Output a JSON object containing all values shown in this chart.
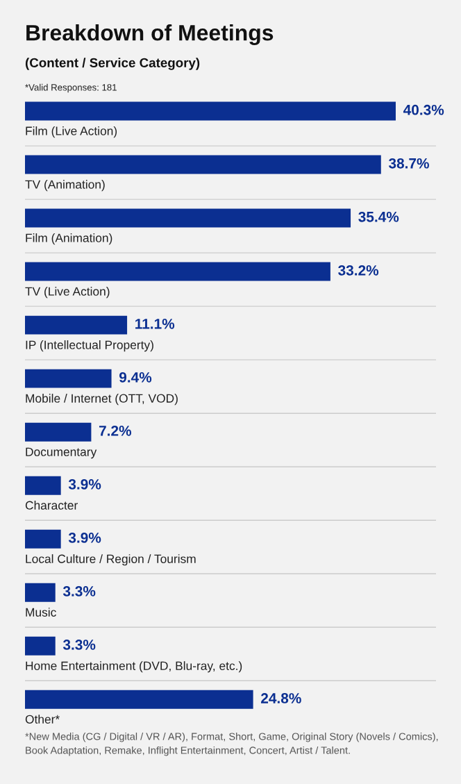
{
  "chart_data": {
    "type": "bar",
    "orientation": "horizontal",
    "title": "Breakdown of Meetings",
    "subtitle": "(Content / Service Category)",
    "categories": [
      "Film (Live Action)",
      "TV (Animation)",
      "Film (Animation)",
      "TV (Live Action)",
      "IP (Intellectual Property)",
      "Mobile / Internet (OTT, VOD)",
      "Documentary",
      "Character",
      "Local Culture / Region / Tourism",
      "Music",
      "Home Entertainment (DVD, Blu-ray, etc.)",
      "Other*"
    ],
    "values": [
      40.3,
      38.7,
      35.4,
      33.2,
      11.1,
      9.4,
      7.2,
      3.9,
      3.9,
      3.3,
      3.3,
      24.8
    ],
    "value_labels": [
      "40.3%",
      "38.7%",
      "35.4%",
      "33.2%",
      "11.1%",
      "9.4%",
      "7.2%",
      "3.9%",
      "3.9%",
      "3.3%",
      "3.3%",
      "24.8%"
    ],
    "color": "#0b2f91",
    "grid": "y",
    "annotations": [
      "*Valid Responses: 181",
      "*New Media (CG / Digital / VR / AR), Format, Short, Game, Original Story (Novels / Comics), Book Adaptation, Remake, Inflight Entertainment, Concert, Artist / Talent."
    ]
  }
}
